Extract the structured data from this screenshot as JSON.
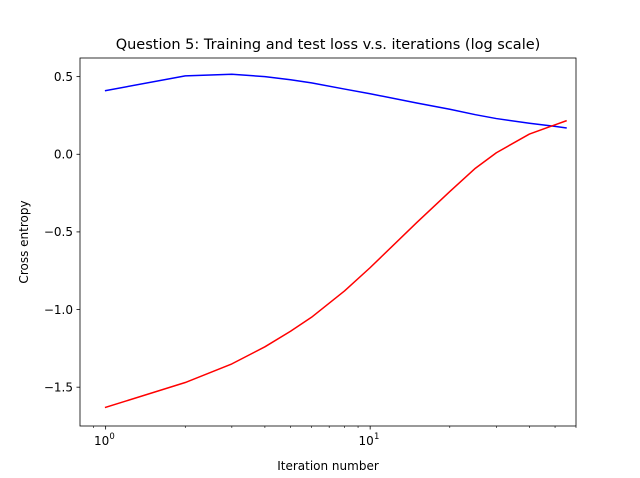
{
  "chart_data": {
    "type": "line",
    "title": "Question 5: Training and test loss v.s. iterations (log scale)",
    "xlabel": "Iteration number",
    "ylabel": "Cross entropy",
    "xscale": "log",
    "xlim": [
      0.8,
      60
    ],
    "ylim": [
      -1.75,
      0.62
    ],
    "grid": false,
    "legend": "none",
    "x_ticks": [
      {
        "value": 1,
        "base": "10",
        "exp": "0"
      },
      {
        "value": 10,
        "base": "10",
        "exp": "1"
      }
    ],
    "y_ticks": [
      {
        "value": 0.5,
        "label": "0.5"
      },
      {
        "value": 0.0,
        "label": "0.0"
      },
      {
        "value": -0.5,
        "label": "−0.5"
      },
      {
        "value": -1.0,
        "label": "−1.0"
      },
      {
        "value": -1.5,
        "label": "−1.5"
      }
    ],
    "series": [
      {
        "color": "#0000ff",
        "points": [
          [
            1,
            0.41
          ],
          [
            2,
            0.505
          ],
          [
            3,
            0.515
          ],
          [
            4,
            0.5
          ],
          [
            5,
            0.48
          ],
          [
            6,
            0.46
          ],
          [
            8,
            0.42
          ],
          [
            10,
            0.39
          ],
          [
            15,
            0.33
          ],
          [
            20,
            0.29
          ],
          [
            25,
            0.255
          ],
          [
            30,
            0.23
          ],
          [
            40,
            0.2
          ],
          [
            50,
            0.18
          ],
          [
            55,
            0.17
          ]
        ]
      },
      {
        "color": "#ff0000",
        "points": [
          [
            1,
            -1.63
          ],
          [
            2,
            -1.47
          ],
          [
            3,
            -1.35
          ],
          [
            4,
            -1.24
          ],
          [
            5,
            -1.14
          ],
          [
            6,
            -1.05
          ],
          [
            8,
            -0.88
          ],
          [
            10,
            -0.73
          ],
          [
            15,
            -0.44
          ],
          [
            20,
            -0.24
          ],
          [
            25,
            -0.09
          ],
          [
            30,
            0.01
          ],
          [
            40,
            0.13
          ],
          [
            50,
            0.19
          ],
          [
            55,
            0.215
          ]
        ]
      }
    ]
  }
}
